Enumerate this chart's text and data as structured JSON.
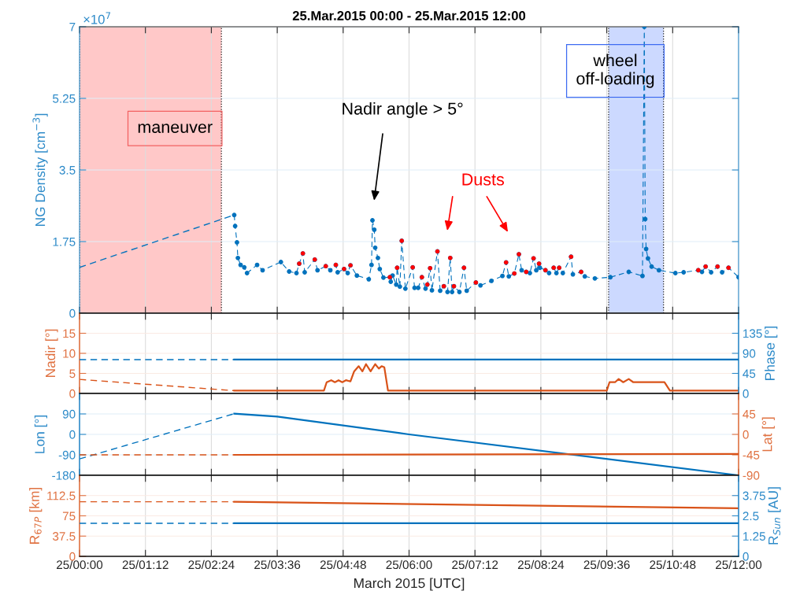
{
  "chart_data": [
    {
      "type": "line",
      "title": "25.Mar.2015 00:00 - 25.Mar.2015 12:00",
      "ylabel": "NG Density [cm$^{−3}$]",
      "xlim": [
        "2015-03-25T00:00",
        "2015-03-25T12:00"
      ],
      "xticks": [
        {
          "value": "2015-03-25T00:00",
          "label": null
        },
        {
          "value": "2015-03-25T01:12",
          "label": null
        },
        {
          "value": "2015-03-25T02:24",
          "label": null
        },
        {
          "value": "2015-03-25T03:36",
          "label": null
        },
        {
          "value": "2015-03-25T04:48",
          "label": null
        },
        {
          "value": "2015-03-25T06:00",
          "label": null
        },
        {
          "value": "2015-03-25T07:12",
          "label": null
        },
        {
          "value": "2015-03-25T08:24",
          "label": null
        },
        {
          "value": "2015-03-25T09:36",
          "label": null
        },
        {
          "value": "2015-03-25T10:48",
          "label": null
        },
        {
          "value": "2015-03-25T12:00",
          "label": null
        }
      ],
      "ylim": [
        0,
        7
      ],
      "yticks": [
        0,
        1.75,
        3.5,
        5.25,
        7
      ],
      "grid": true,
      "tick_labels": "y",
      "bands": [
        {
          "axis": "x",
          "from": "2015-03-25T00:00",
          "to": "2015-03-25T02:35",
          "label": "maneuver",
          "color": "#ffc8c8"
        },
        {
          "axis": "x",
          "from": "2015-03-25T09:38",
          "to": "2015-03-25T10:38",
          "label": "wheel\noff-loading",
          "color": "#ccd9ff"
        }
      ],
      "annotations": [
        "×10$^{7}$",
        "Nadir angle > 5°",
        "Dusts"
      ],
      "series": [
        {
          "color": "#0072bd",
          "line_style": "dashed",
          "marker": "none",
          "x": [
            "2015-03-25T00:00",
            "2015-03-25T02:49"
          ],
          "values": [
            1.12,
            2.4
          ]
        },
        {
          "color": "#0072bd",
          "line_style": "dashed",
          "marker": "circle",
          "x": [
            "2015-03-25T02:49",
            "2015-03-25T02:50",
            "2015-03-25T02:52",
            "2015-03-25T02:53",
            "2015-03-25T02:56",
            "2015-03-25T03:00",
            "2015-03-25T03:03",
            "2015-03-25T03:14",
            "2015-03-25T03:20",
            "2015-03-25T03:40",
            "2015-03-25T03:49",
            "2015-03-25T03:57",
            "2015-03-25T04:00",
            "2015-03-25T04:04",
            "2015-03-25T04:06",
            "2015-03-25T04:17",
            "2015-03-25T04:20",
            "2015-03-25T04:29",
            "2015-03-25T04:34",
            "2015-03-25T04:40",
            "2015-03-25T04:42",
            "2015-03-25T04:49",
            "2015-03-25T04:53",
            "2015-03-25T04:56",
            "2015-03-25T05:03",
            "2015-03-25T05:16",
            "2015-03-25T05:19",
            "2015-03-25T05:20",
            "2015-03-25T05:22",
            "2015-03-25T05:23",
            "2015-03-25T05:26",
            "2015-03-25T05:28",
            "2015-03-25T05:32",
            "2015-03-25T05:39",
            "2015-03-25T05:40",
            "2015-03-25T05:42",
            "2015-03-25T05:46",
            "2015-03-25T05:47",
            "2015-03-25T05:50",
            "2015-03-25T05:52",
            "2015-03-25T05:56",
            "2015-03-25T06:04",
            "2015-03-25T06:06",
            "2015-03-25T06:10",
            "2015-03-25T06:14",
            "2015-03-25T06:18",
            "2015-03-25T06:20",
            "2015-03-25T06:23",
            "2015-03-25T06:25",
            "2015-03-25T06:31",
            "2015-03-25T06:34",
            "2015-03-25T06:38",
            "2015-03-25T06:42",
            "2015-03-25T06:45",
            "2015-03-25T06:47",
            "2015-03-25T06:49",
            "2015-03-25T06:55",
            "2015-03-25T07:00",
            "2015-03-25T07:03",
            "2015-03-25T07:13",
            "2015-03-25T07:18",
            "2015-03-25T07:30",
            "2015-03-25T07:42",
            "2015-03-25T07:46",
            "2015-03-25T07:49",
            "2015-03-25T07:55",
            "2015-03-25T08:00",
            "2015-03-25T08:03",
            "2015-03-25T08:08",
            "2015-03-25T08:12",
            "2015-03-25T08:16",
            "2015-03-25T08:19",
            "2015-03-25T08:22",
            "2015-03-25T08:23",
            "2015-03-25T08:29",
            "2015-03-25T08:33",
            "2015-03-25T08:38",
            "2015-03-25T08:41",
            "2015-03-25T08:44",
            "2015-03-25T08:48",
            "2015-03-25T08:57",
            "2015-03-25T08:59",
            "2015-03-25T09:08",
            "2015-03-25T09:12",
            "2015-03-25T09:23",
            "2015-03-25T09:40",
            "2015-03-25T10:00",
            "2015-03-25T10:15",
            "2015-03-25T10:17",
            "2015-03-25T10:18",
            "2015-03-25T10:19",
            "2015-03-25T10:21",
            "2015-03-25T10:25",
            "2015-03-25T10:33",
            "2015-03-25T10:51",
            "2015-03-25T11:00",
            "2015-03-25T11:16",
            "2015-03-25T11:20",
            "2015-03-25T11:24",
            "2015-03-25T11:30",
            "2015-03-25T11:37",
            "2015-03-25T11:42",
            "2015-03-25T11:49",
            "2015-03-25T12:00"
          ],
          "values": [
            2.4,
            2.13,
            1.73,
            1.35,
            1.18,
            1.12,
            0.98,
            1.18,
            1.05,
            1.25,
            1.02,
            0.98,
            1.21,
            1.46,
            1.0,
            1.31,
            1.05,
            1.15,
            1.05,
            1.18,
            1.0,
            1.08,
            0.98,
            1.17,
            0.92,
            0.83,
            1.18,
            2.27,
            2.04,
            1.6,
            1.35,
            1.08,
            0.87,
            0.88,
            0.77,
            0.92,
            0.7,
            1.11,
            0.65,
            1.77,
            0.6,
            1.12,
            0.62,
            0.62,
            0.88,
            0.6,
            0.7,
            1.1,
            0.56,
            1.51,
            0.55,
            0.66,
            0.52,
            1.35,
            0.52,
            0.66,
            0.52,
            1.11,
            0.55,
            0.75,
            0.68,
            0.79,
            0.91,
            1.24,
            0.9,
            0.97,
            1.44,
            1.05,
            1.01,
            0.98,
            1.34,
            1.05,
            1.21,
            1.11,
            1.05,
            0.98,
            1.11,
            0.98,
            1.11,
            0.98,
            1.38,
            0.95,
            1.01,
            0.9,
            0.85,
            0.88,
            1.01,
            0.91,
            7.0,
            2.3,
            1.57,
            1.34,
            1.14,
            1.05,
            0.98,
            1.0,
            1.05,
            1.01,
            1.14,
            1.0,
            1.14,
            1.0,
            1.11,
            0.88
          ]
        },
        {
          "type": "scatter",
          "color": "#ff0000",
          "marker": "circle",
          "x": [
            "2015-03-25T04:00",
            "2015-03-25T04:04",
            "2015-03-25T04:17",
            "2015-03-25T04:29",
            "2015-03-25T04:40",
            "2015-03-25T04:49",
            "2015-03-25T04:56",
            "2015-03-25T05:39",
            "2015-03-25T05:47",
            "2015-03-25T05:52",
            "2015-03-25T06:04",
            "2015-03-25T06:14",
            "2015-03-25T06:20",
            "2015-03-25T06:23",
            "2015-03-25T06:31",
            "2015-03-25T06:38",
            "2015-03-25T06:45",
            "2015-03-25T06:49",
            "2015-03-25T07:00",
            "2015-03-25T07:13",
            "2015-03-25T07:46",
            "2015-03-25T07:55",
            "2015-03-25T08:00",
            "2015-03-25T08:08",
            "2015-03-25T08:16",
            "2015-03-25T08:22",
            "2015-03-25T08:29",
            "2015-03-25T08:38",
            "2015-03-25T08:44",
            "2015-03-25T08:57",
            "2015-03-25T09:08",
            "2015-03-25T11:16",
            "2015-03-25T11:24",
            "2015-03-25T11:37",
            "2015-03-25T11:49"
          ],
          "values": [
            1.21,
            1.46,
            1.31,
            1.15,
            1.18,
            1.08,
            1.17,
            0.88,
            1.11,
            1.77,
            1.12,
            0.88,
            0.7,
            1.1,
            1.51,
            0.66,
            1.35,
            0.66,
            1.11,
            0.75,
            1.24,
            0.97,
            1.44,
            1.01,
            1.34,
            1.21,
            1.05,
            1.11,
            1.11,
            1.38,
            1.01,
            1.05,
            1.14,
            1.14,
            1.11
          ]
        }
      ]
    },
    {
      "type": "line",
      "ylabel": "Nadir [°]",
      "y2label": "Phase [°]",
      "xlim": [
        "2015-03-25T00:00",
        "2015-03-25T12:00"
      ],
      "xticks": [
        {
          "value": "2015-03-25T00:00",
          "label": null
        },
        {
          "value": "2015-03-25T01:12",
          "label": null
        },
        {
          "value": "2015-03-25T02:24",
          "label": null
        },
        {
          "value": "2015-03-25T03:36",
          "label": null
        },
        {
          "value": "2015-03-25T04:48",
          "label": null
        },
        {
          "value": "2015-03-25T06:00",
          "label": null
        },
        {
          "value": "2015-03-25T07:12",
          "label": null
        },
        {
          "value": "2015-03-25T08:24",
          "label": null
        },
        {
          "value": "2015-03-25T09:36",
          "label": null
        },
        {
          "value": "2015-03-25T10:48",
          "label": null
        },
        {
          "value": "2015-03-25T12:00",
          "label": null
        }
      ],
      "ylim": [
        0,
        20
      ],
      "yticks": [
        0,
        5,
        10,
        15
      ],
      "y2lim": [
        0,
        180
      ],
      "y2ticks": [
        0,
        45,
        90,
        135
      ],
      "grid": true,
      "tick_labels": "y",
      "series": [
        {
          "color": "#d95319",
          "line_style": "dashed",
          "x": [
            "2015-03-25T00:00",
            "2015-03-25T02:49"
          ],
          "values": [
            3.5,
            0.7
          ]
        },
        {
          "color": "#d95319",
          "line_style": "solid",
          "x": [
            "2015-03-25T02:49",
            "2015-03-25T04:27",
            "2015-03-25T04:30",
            "2015-03-25T04:35",
            "2015-03-25T04:39",
            "2015-03-25T04:43",
            "2015-03-25T04:47",
            "2015-03-25T04:51",
            "2015-03-25T04:56",
            "2015-03-25T05:00",
            "2015-03-25T05:05",
            "2015-03-25T05:09",
            "2015-03-25T05:13",
            "2015-03-25T05:18",
            "2015-03-25T05:23",
            "2015-03-25T05:27",
            "2015-03-25T05:30",
            "2015-03-25T05:33",
            "2015-03-25T05:37",
            "2015-03-25T09:36",
            "2015-03-25T09:39",
            "2015-03-25T09:45",
            "2015-03-25T09:49",
            "2015-03-25T09:54",
            "2015-03-25T10:00",
            "2015-03-25T10:05",
            "2015-03-25T10:39",
            "2015-03-25T10:45",
            "2015-03-25T12:00"
          ],
          "values": [
            0.7,
            0.7,
            2.8,
            3.3,
            2.8,
            3.3,
            2.8,
            3.3,
            3.0,
            5.5,
            6.8,
            5.5,
            7.3,
            5.5,
            7.3,
            6.2,
            6.8,
            6.5,
            0.7,
            0.7,
            2.8,
            2.8,
            3.6,
            2.8,
            3.6,
            2.8,
            2.8,
            0.7,
            0.7
          ]
        },
        {
          "color": "#0072bd",
          "line_style": "dashed",
          "axis": "y2",
          "x": [
            "2015-03-25T00:00",
            "2015-03-25T02:49"
          ],
          "values": [
            76,
            76
          ]
        },
        {
          "color": "#0072bd",
          "line_style": "solid",
          "axis": "y2",
          "x": [
            "2015-03-25T02:49",
            "2015-03-25T12:00"
          ],
          "values": [
            76,
            76
          ]
        }
      ]
    },
    {
      "type": "line",
      "ylabel": "Lon [°]",
      "y2label": "Lat [°]",
      "xlim": [
        "2015-03-25T00:00",
        "2015-03-25T12:00"
      ],
      "xticks": [
        {
          "value": "2015-03-25T00:00",
          "label": null
        },
        {
          "value": "2015-03-25T01:12",
          "label": null
        },
        {
          "value": "2015-03-25T02:24",
          "label": null
        },
        {
          "value": "2015-03-25T03:36",
          "label": null
        },
        {
          "value": "2015-03-25T04:48",
          "label": null
        },
        {
          "value": "2015-03-25T06:00",
          "label": null
        },
        {
          "value": "2015-03-25T07:12",
          "label": null
        },
        {
          "value": "2015-03-25T08:24",
          "label": null
        },
        {
          "value": "2015-03-25T09:36",
          "label": null
        },
        {
          "value": "2015-03-25T10:48",
          "label": null
        },
        {
          "value": "2015-03-25T12:00",
          "label": null
        }
      ],
      "ylim": [
        -180,
        180
      ],
      "yticks": [
        -180,
        -90,
        0,
        90
      ],
      "y2lim": [
        -90,
        90
      ],
      "y2ticks": [
        -90,
        -45,
        0,
        45
      ],
      "grid": true,
      "tick_labels": "y",
      "series": [
        {
          "color": "#0072bd",
          "line_style": "dashed",
          "x": [
            "2015-03-25T00:00",
            "2015-03-25T02:49"
          ],
          "values": [
            -108,
            91
          ]
        },
        {
          "color": "#0072bd",
          "line_style": "solid",
          "x": [
            "2015-03-25T02:49",
            "2015-03-25T03:36",
            "2015-03-25T06:00",
            "2015-03-25T12:00"
          ],
          "values": [
            91,
            78,
            0,
            -180
          ]
        },
        {
          "color": "#d95319",
          "line_style": "dashed",
          "axis": "y2",
          "x": [
            "2015-03-25T00:00",
            "2015-03-25T02:49"
          ],
          "values": [
            -45,
            -45
          ]
        },
        {
          "color": "#d95319",
          "line_style": "solid",
          "axis": "y2",
          "x": [
            "2015-03-25T02:49",
            "2015-03-25T12:00"
          ],
          "values": [
            -45,
            -43
          ]
        }
      ]
    },
    {
      "type": "line",
      "ylabel": "R$_{67P}$ [km]",
      "y2label": "R$_{Sun}$ [AU]",
      "xlabel": "March 2015 [UTC]",
      "xlim": [
        "2015-03-25T00:00",
        "2015-03-25T12:00"
      ],
      "xticks": [
        {
          "value": "2015-03-25T00:00",
          "label": "25/00:00"
        },
        {
          "value": "2015-03-25T01:12",
          "label": "25/01:12"
        },
        {
          "value": "2015-03-25T02:24",
          "label": "25/02:24"
        },
        {
          "value": "2015-03-25T03:36",
          "label": "25/03:36"
        },
        {
          "value": "2015-03-25T04:48",
          "label": "25/04:48"
        },
        {
          "value": "2015-03-25T06:00",
          "label": "25/06:00"
        },
        {
          "value": "2015-03-25T07:12",
          "label": "25/07:12"
        },
        {
          "value": "2015-03-25T08:24",
          "label": "25/08:24"
        },
        {
          "value": "2015-03-25T09:36",
          "label": "25/09:36"
        },
        {
          "value": "2015-03-25T10:48",
          "label": "25/10:48"
        },
        {
          "value": "2015-03-25T12:00",
          "label": "25/12:00"
        }
      ],
      "ylim": [
        0,
        150
      ],
      "yticks": [
        0,
        37.5,
        75,
        112.5
      ],
      "y2lim": [
        0,
        5
      ],
      "y2ticks": [
        0,
        1.25,
        2.5,
        3.75
      ],
      "grid": true,
      "series": [
        {
          "color": "#d95319",
          "line_style": "dashed",
          "x": [
            "2015-03-25T00:00",
            "2015-03-25T02:49"
          ],
          "values": [
            101,
            101
          ]
        },
        {
          "color": "#d95319",
          "line_style": "solid",
          "x": [
            "2015-03-25T02:49",
            "2015-03-25T12:00"
          ],
          "values": [
            101,
            89
          ]
        },
        {
          "color": "#0072bd",
          "line_style": "dashed",
          "axis": "y2",
          "x": [
            "2015-03-25T00:00",
            "2015-03-25T02:49"
          ],
          "values": [
            2.04,
            2.04
          ]
        },
        {
          "color": "#0072bd",
          "line_style": "solid",
          "axis": "y2",
          "x": [
            "2015-03-25T02:49",
            "2015-03-25T12:00"
          ],
          "values": [
            2.04,
            2.04
          ]
        }
      ]
    }
  ]
}
